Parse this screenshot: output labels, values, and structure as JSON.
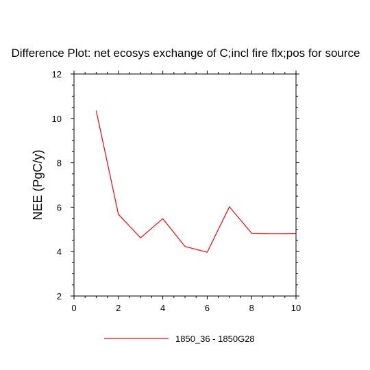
{
  "chart_data": {
    "type": "line",
    "title": "Difference Plot: net ecosys exchange of C;incl fire flx;pos for source",
    "xlabel": "",
    "ylabel": "NEE  (PgC/y)",
    "xlim": [
      0,
      10
    ],
    "ylim": [
      2,
      12
    ],
    "x_ticks": [
      0,
      2,
      4,
      6,
      8,
      10
    ],
    "y_ticks": [
      2,
      4,
      6,
      8,
      10,
      12
    ],
    "grid": false,
    "legend_position": "bottom-center",
    "series": [
      {
        "name": "1850_36 - 1850G28",
        "color": "#ff0000",
        "x": [
          1,
          2,
          3,
          4,
          5,
          6,
          7,
          8,
          9,
          10
        ],
        "y": [
          10.35,
          5.68,
          4.62,
          5.48,
          4.23,
          3.97,
          6.02,
          4.83,
          4.81,
          4.82
        ]
      }
    ]
  }
}
